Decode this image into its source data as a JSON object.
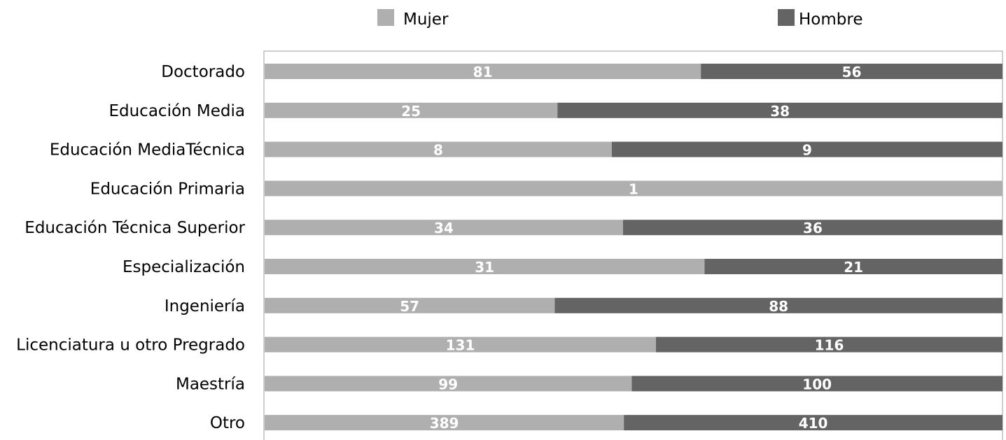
{
  "chart_data": {
    "type": "bar",
    "orientation": "horizontal",
    "stacking": "percent",
    "categories": [
      "Doctorado",
      "Educación Media",
      "Educación MediaTécnica",
      "Educación Primaria",
      "Educación Técnica Superior",
      "Especialización",
      "Ingeniería",
      "Licenciatura u otro Pregrado",
      "Maestría",
      "Otro"
    ],
    "series": [
      {
        "name": "Mujer",
        "color": "#afafaf",
        "values": [
          81,
          25,
          8,
          1,
          34,
          31,
          57,
          131,
          99,
          389
        ]
      },
      {
        "name": "Hombre",
        "color": "#646464",
        "values": [
          56,
          38,
          9,
          0,
          36,
          21,
          88,
          116,
          100,
          410
        ]
      }
    ],
    "legend_position": "top",
    "grid": false,
    "title": "",
    "xlabel": "",
    "ylabel": ""
  }
}
